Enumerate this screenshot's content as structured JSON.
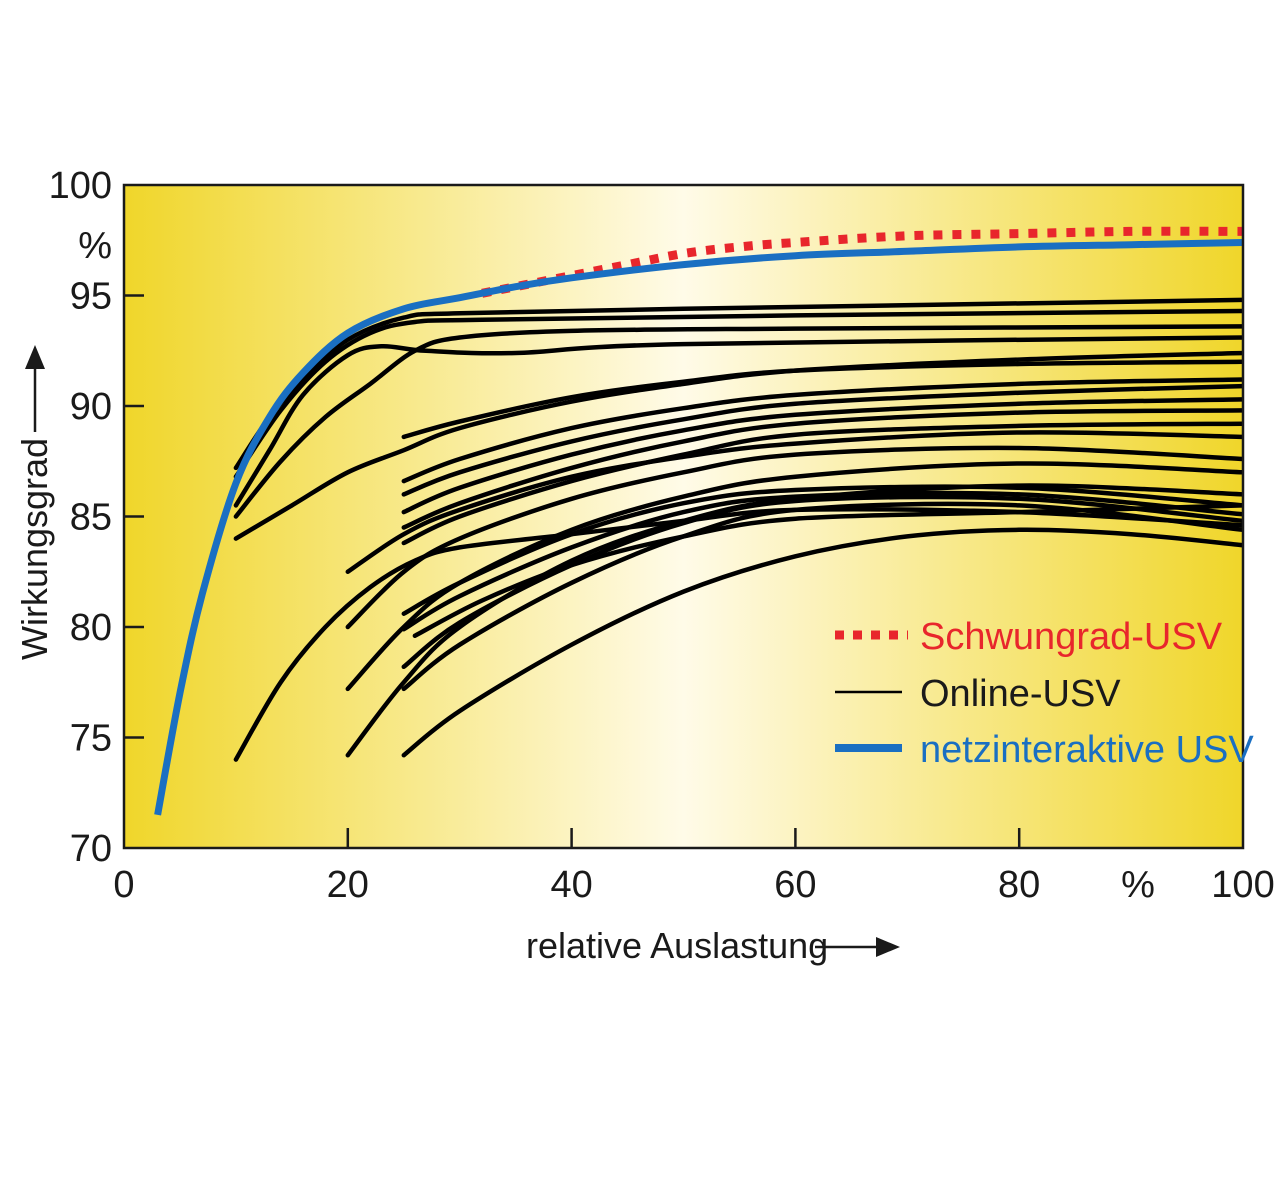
{
  "chart_data": {
    "type": "line",
    "xlabel": "relative Auslastung",
    "ylabel": "Wirkungsgrad",
    "x_unit": "%",
    "y_unit": "%",
    "xlim": [
      0,
      100
    ],
    "ylim": [
      70,
      100
    ],
    "x_ticks": [
      0,
      20,
      40,
      60,
      80,
      100
    ],
    "y_ticks": [
      70,
      75,
      80,
      85,
      90,
      95,
      100
    ],
    "grid": false,
    "legend_position": "bottom-right",
    "background": {
      "gradient_edge": "#f0d62a",
      "gradient_center": "#fffbe8"
    },
    "legend": [
      {
        "label": "Schwungrad-USV",
        "color": "#e8262c",
        "style": "dotted"
      },
      {
        "label": "Online-USV",
        "color": "#000000",
        "style": "solid"
      },
      {
        "label": "netzinteraktive USV",
        "color": "#1a6fc2",
        "style": "solid-thick"
      }
    ],
    "series": [
      {
        "name": "netzinteraktive USV",
        "color": "#1a6fc2",
        "points": [
          [
            3,
            71.5
          ],
          [
            5,
            77
          ],
          [
            7,
            81.5
          ],
          [
            10,
            86.5
          ],
          [
            13,
            89.5
          ],
          [
            16,
            91.5
          ],
          [
            20,
            93.3
          ],
          [
            25,
            94.4
          ],
          [
            30,
            94.9
          ],
          [
            35,
            95.4
          ],
          [
            40,
            95.8
          ],
          [
            50,
            96.4
          ],
          [
            60,
            96.8
          ],
          [
            70,
            97
          ],
          [
            80,
            97.2
          ],
          [
            90,
            97.3
          ],
          [
            100,
            97.4
          ]
        ]
      },
      {
        "name": "Schwungrad-USV",
        "color": "#e8262c",
        "points": [
          [
            32,
            95.1
          ],
          [
            35,
            95.4
          ],
          [
            40,
            95.9
          ],
          [
            45,
            96.4
          ],
          [
            50,
            96.9
          ],
          [
            55,
            97.2
          ],
          [
            60,
            97.4
          ],
          [
            70,
            97.7
          ],
          [
            80,
            97.8
          ],
          [
            90,
            97.9
          ],
          [
            100,
            97.9
          ]
        ]
      }
    ],
    "online_usv_curves": [
      [
        [
          10,
          87.2
        ],
        [
          13,
          89.5
        ],
        [
          16,
          91.2
        ],
        [
          20,
          93
        ],
        [
          25,
          94
        ],
        [
          30,
          94.2
        ],
        [
          50,
          94.4
        ],
        [
          100,
          94.8
        ]
      ],
      [
        [
          10,
          86.8
        ],
        [
          14,
          89.8
        ],
        [
          18,
          92
        ],
        [
          22,
          93.3
        ],
        [
          26,
          93.8
        ],
        [
          32,
          93.9
        ],
        [
          60,
          94.1
        ],
        [
          100,
          94.3
        ]
      ],
      [
        [
          10,
          85.5
        ],
        [
          13,
          88
        ],
        [
          16,
          90.5
        ],
        [
          20,
          92.3
        ],
        [
          23,
          92.7
        ],
        [
          27,
          92.5
        ],
        [
          35,
          92.4
        ],
        [
          50,
          92.8
        ],
        [
          100,
          93.1
        ]
      ],
      [
        [
          10,
          85
        ],
        [
          14,
          87.5
        ],
        [
          18,
          89.5
        ],
        [
          22,
          91
        ],
        [
          26,
          92.5
        ],
        [
          30,
          93.1
        ],
        [
          40,
          93.4
        ],
        [
          60,
          93.5
        ],
        [
          100,
          93.6
        ]
      ],
      [
        [
          10,
          84
        ],
        [
          15,
          85.5
        ],
        [
          20,
          87
        ],
        [
          25,
          88
        ],
        [
          30,
          89
        ],
        [
          40,
          90.2
        ],
        [
          50,
          91
        ],
        [
          60,
          91.6
        ],
        [
          80,
          92.1
        ],
        [
          100,
          92.4
        ]
      ],
      [
        [
          25,
          88.6
        ],
        [
          30,
          89.3
        ],
        [
          40,
          90.4
        ],
        [
          50,
          91.1
        ],
        [
          60,
          91.6
        ],
        [
          80,
          91.9
        ],
        [
          100,
          92
        ]
      ],
      [
        [
          25,
          86.6
        ],
        [
          30,
          87.6
        ],
        [
          40,
          89
        ],
        [
          50,
          89.9
        ],
        [
          60,
          90.5
        ],
        [
          80,
          91
        ],
        [
          100,
          91.2
        ]
      ],
      [
        [
          25,
          86
        ],
        [
          30,
          87
        ],
        [
          40,
          88.4
        ],
        [
          50,
          89.4
        ],
        [
          60,
          90.1
        ],
        [
          80,
          90.6
        ],
        [
          100,
          90.9
        ]
      ],
      [
        [
          25,
          85.2
        ],
        [
          30,
          86.3
        ],
        [
          40,
          87.8
        ],
        [
          50,
          88.9
        ],
        [
          60,
          89.6
        ],
        [
          80,
          90.1
        ],
        [
          100,
          90.3
        ]
      ],
      [
        [
          25,
          84.5
        ],
        [
          30,
          85.6
        ],
        [
          40,
          87.2
        ],
        [
          50,
          88.4
        ],
        [
          60,
          89.2
        ],
        [
          80,
          89.7
        ],
        [
          100,
          89.8
        ]
      ],
      [
        [
          25,
          83.8
        ],
        [
          30,
          85
        ],
        [
          40,
          86.6
        ],
        [
          50,
          87.8
        ],
        [
          60,
          88.7
        ],
        [
          80,
          89.1
        ],
        [
          100,
          89.2
        ]
      ],
      [
        [
          20,
          82.5
        ],
        [
          25,
          84.2
        ],
        [
          30,
          85.3
        ],
        [
          40,
          86.8
        ],
        [
          50,
          87.7
        ],
        [
          60,
          88.3
        ],
        [
          80,
          88.8
        ],
        [
          100,
          88.6
        ]
      ],
      [
        [
          20,
          80
        ],
        [
          25,
          82.5
        ],
        [
          30,
          84
        ],
        [
          40,
          85.8
        ],
        [
          50,
          87
        ],
        [
          60,
          87.8
        ],
        [
          80,
          88.1
        ],
        [
          100,
          87.6
        ]
      ],
      [
        [
          20,
          77.2
        ],
        [
          25,
          80
        ],
        [
          30,
          82
        ],
        [
          40,
          84.4
        ],
        [
          50,
          85.9
        ],
        [
          60,
          86.8
        ],
        [
          80,
          87.4
        ],
        [
          100,
          87
        ]
      ],
      [
        [
          20,
          74.2
        ],
        [
          25,
          77.5
        ],
        [
          30,
          80
        ],
        [
          40,
          83
        ],
        [
          50,
          84.8
        ],
        [
          60,
          85.8
        ],
        [
          80,
          86.4
        ],
        [
          100,
          86
        ]
      ],
      [
        [
          25,
          80.6
        ],
        [
          30,
          82
        ],
        [
          40,
          84.2
        ],
        [
          50,
          85.6
        ],
        [
          60,
          86.2
        ],
        [
          80,
          86.3
        ],
        [
          100,
          85.5
        ]
      ],
      [
        [
          25,
          79.9
        ],
        [
          30,
          81.4
        ],
        [
          40,
          83.6
        ],
        [
          50,
          85.2
        ],
        [
          60,
          85.9
        ],
        [
          80,
          86
        ],
        [
          100,
          85.1
        ]
      ],
      [
        [
          25,
          78.2
        ],
        [
          30,
          80.2
        ],
        [
          40,
          82.8
        ],
        [
          50,
          84.7
        ],
        [
          60,
          85.7
        ],
        [
          80,
          85.8
        ],
        [
          100,
          84.8
        ]
      ],
      [
        [
          25,
          77.2
        ],
        [
          30,
          79.2
        ],
        [
          40,
          82
        ],
        [
          50,
          84.1
        ],
        [
          60,
          85.3
        ],
        [
          80,
          85.5
        ],
        [
          100,
          84.4
        ]
      ],
      [
        [
          10,
          74
        ],
        [
          14,
          77.5
        ],
        [
          18,
          80
        ],
        [
          22,
          81.8
        ],
        [
          26,
          83
        ],
        [
          30,
          83.6
        ],
        [
          40,
          84.2
        ],
        [
          50,
          84.8
        ],
        [
          60,
          85.3
        ],
        [
          80,
          85.2
        ],
        [
          100,
          84.6
        ]
      ],
      [
        [
          25,
          74.2
        ],
        [
          30,
          76.2
        ],
        [
          40,
          79.2
        ],
        [
          50,
          81.6
        ],
        [
          60,
          83.2
        ],
        [
          70,
          84.1
        ],
        [
          80,
          84.4
        ],
        [
          90,
          84.2
        ],
        [
          100,
          83.7
        ]
      ],
      [
        [
          26,
          79.6
        ],
        [
          32,
          81.2
        ],
        [
          40,
          82.8
        ],
        [
          50,
          84.1
        ],
        [
          60,
          84.9
        ],
        [
          80,
          85.2
        ],
        [
          100,
          85.5
        ]
      ]
    ]
  }
}
